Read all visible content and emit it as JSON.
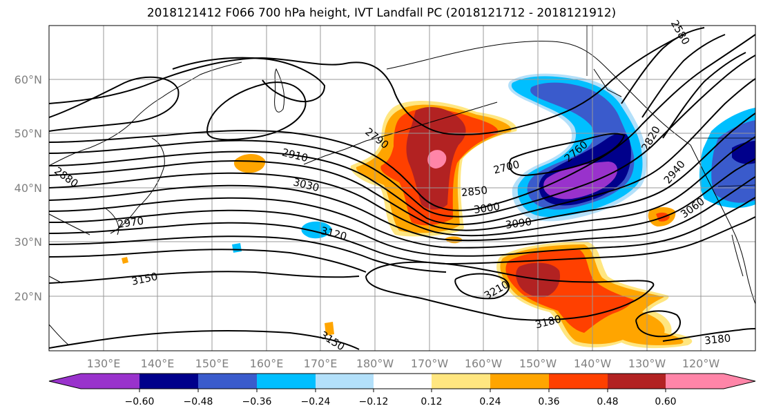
{
  "title": "2018121412 F066 700 hPa height, IVT Landfall PC (2018121712 - 2018121912)",
  "map": {
    "lon_ticks": [
      "130°E",
      "140°E",
      "150°E",
      "160°E",
      "170°E",
      "180°W",
      "170°W",
      "160°W",
      "150°W",
      "140°W",
      "130°W",
      "120°W"
    ],
    "lat_ticks": [
      "20°N",
      "30°N",
      "40°N",
      "50°N",
      "60°N"
    ],
    "contour_labels": [
      "2910",
      "2790",
      "2700",
      "2760",
      "2820",
      "2940",
      "3060",
      "3030",
      "2850",
      "3000",
      "3090",
      "2880",
      "2970",
      "3120",
      "3150",
      "3210",
      "3180",
      "3180",
      "3150",
      "2580"
    ]
  },
  "colorbar": {
    "tick_labels": [
      "−0.60",
      "−0.48",
      "−0.36",
      "−0.24",
      "−0.12",
      "0.12",
      "0.24",
      "0.36",
      "0.48",
      "0.60"
    ],
    "colors": [
      "#9932cc",
      "#00008b",
      "#3a5bcc",
      "#00bfff",
      "#b3e0fa",
      "#ffffff",
      "#ffe680",
      "#ffa500",
      "#ff4000",
      "#b22222",
      "#ff85a8"
    ]
  },
  "field_colors": {
    "neg_060": "#9932cc",
    "neg_048": "#00008b",
    "neg_036": "#3a5bcc",
    "neg_024": "#00bfff",
    "neg_012": "#b3e0fa",
    "pos_012": "#ffe680",
    "pos_024": "#ffa500",
    "pos_036": "#ff4000",
    "pos_048": "#b22222",
    "pos_060": "#ff85a8"
  }
}
